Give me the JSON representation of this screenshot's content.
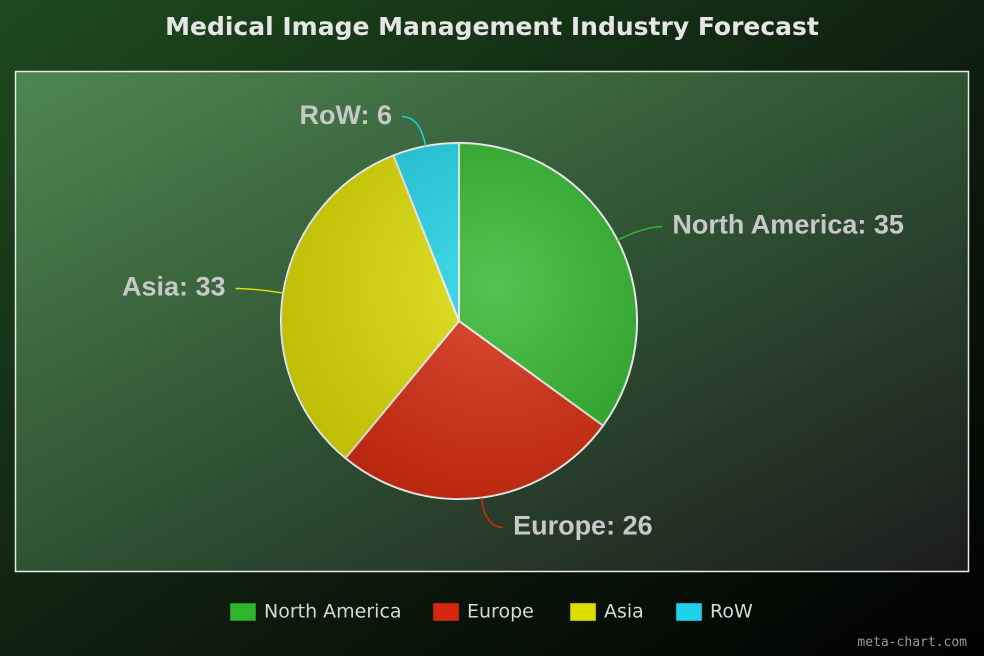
{
  "chart_data": {
    "type": "pie",
    "title": "Medical Image Management Industry Forecast",
    "categories": [
      "North America",
      "Europe",
      "Asia",
      "RoW"
    ],
    "values": [
      35,
      26,
      33,
      6
    ],
    "value_labels": [
      "North America: 35",
      "Europe: 26",
      "Asia: 33",
      "RoW: 6"
    ],
    "colors": [
      "#2fb52a",
      "#d6290c",
      "#dcdc00",
      "#1ed3e8"
    ],
    "legend": "bottom",
    "watermark": "meta-chart.com"
  }
}
